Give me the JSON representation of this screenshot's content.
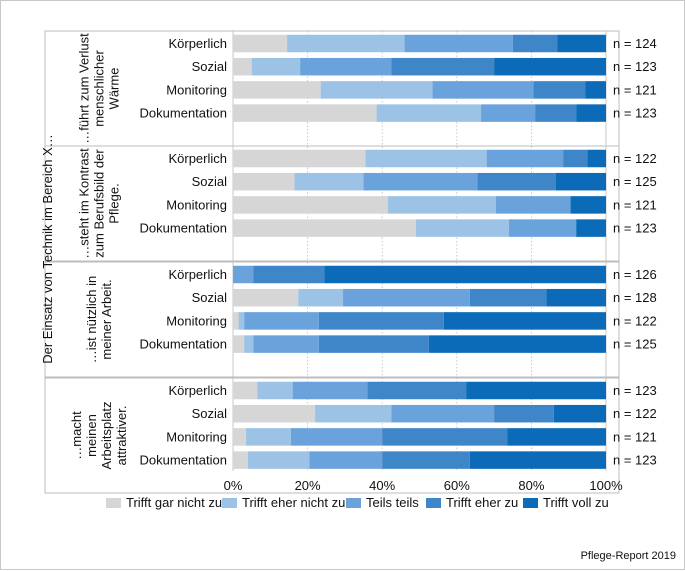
{
  "chart_data": {
    "type": "bar",
    "stacked": true,
    "orientation": "horizontal",
    "percent": true,
    "outer_axis_label": "Der Einsatz von Technik im Bereich X…",
    "xlim": [
      0,
      100
    ],
    "xticks": [
      "0%",
      "20%",
      "40%",
      "60%",
      "80%",
      "100%"
    ],
    "legend_position": "bottom",
    "series_names": [
      "Trifft gar nicht zu",
      "Trifft eher nicht zu",
      "Teils teils",
      "Trifft eher zu",
      "Trifft voll zu"
    ],
    "colors": [
      "#d6d6d6",
      "#9cc2e6",
      "#6aa2dc",
      "#3f86c9",
      "#0b6bb8"
    ],
    "groups": [
      {
        "label": [
          "…führt zum Verlust",
          "menschlicher",
          "Wärme"
        ],
        "rows": [
          {
            "category": "Körperlich",
            "n": "n = 124",
            "values": [
              14.5,
              31.5,
              29.0,
              12.0,
              13.0
            ]
          },
          {
            "category": "Sozial",
            "n": "n = 123",
            "values": [
              5.0,
              13.0,
              24.5,
              27.5,
              30.0
            ]
          },
          {
            "category": "Monitoring",
            "n": "n = 121",
            "values": [
              23.5,
              30.0,
              27.0,
              14.0,
              5.5
            ]
          },
          {
            "category": "Dokumentation",
            "n": "n = 123",
            "values": [
              38.5,
              28.0,
              14.5,
              11.0,
              8.0
            ]
          }
        ]
      },
      {
        "label": [
          "…steht im Kontrast",
          "zum Berufsbild der",
          "Pflege."
        ],
        "rows": [
          {
            "category": "Körperlich",
            "n": "n = 122",
            "values": [
              35.5,
              32.5,
              20.5,
              6.5,
              5.0
            ]
          },
          {
            "category": "Sozial",
            "n": "n = 125",
            "values": [
              16.5,
              18.5,
              30.5,
              21.0,
              13.5
            ]
          },
          {
            "category": "Monitoring",
            "n": "n = 121",
            "values": [
              41.5,
              29.0,
              20.0,
              0.0,
              9.5
            ]
          },
          {
            "category": "Dokumentation",
            "n": "n = 123",
            "values": [
              49.0,
              25.0,
              18.0,
              0.0,
              8.0
            ]
          }
        ]
      },
      {
        "label": [
          "…ist nützlich in",
          "meiner Arbeit."
        ],
        "rows": [
          {
            "category": "Körperlich",
            "n": "n = 126",
            "values": [
              0.0,
              0.0,
              5.5,
              19.0,
              75.5
            ]
          },
          {
            "category": "Sozial",
            "n": "n = 128",
            "values": [
              17.5,
              12.0,
              34.0,
              20.5,
              16.0
            ]
          },
          {
            "category": "Monitoring",
            "n": "n = 122",
            "values": [
              1.5,
              1.5,
              20.0,
              33.5,
              43.5
            ]
          },
          {
            "category": "Dokumentation",
            "n": "n = 125",
            "values": [
              3.0,
              2.5,
              17.5,
              29.5,
              47.5
            ]
          }
        ]
      },
      {
        "label": [
          "…macht",
          "meinen",
          "Arbeitsplatz",
          "attraktiver."
        ],
        "rows": [
          {
            "category": "Körperlich",
            "n": "n = 123",
            "values": [
              6.5,
              9.5,
              20.0,
              26.5,
              37.5
            ]
          },
          {
            "category": "Sozial",
            "n": "n = 122",
            "values": [
              22.0,
              20.5,
              27.5,
              16.0,
              14.0
            ]
          },
          {
            "category": "Monitoring",
            "n": "n = 121",
            "values": [
              3.5,
              12.0,
              24.5,
              33.5,
              26.5
            ]
          },
          {
            "category": "Dokumentation",
            "n": "n = 123",
            "values": [
              4.0,
              16.5,
              19.5,
              23.5,
              36.5
            ]
          }
        ]
      }
    ]
  },
  "footer": {
    "credit": "Pflege-Report 2019"
  }
}
